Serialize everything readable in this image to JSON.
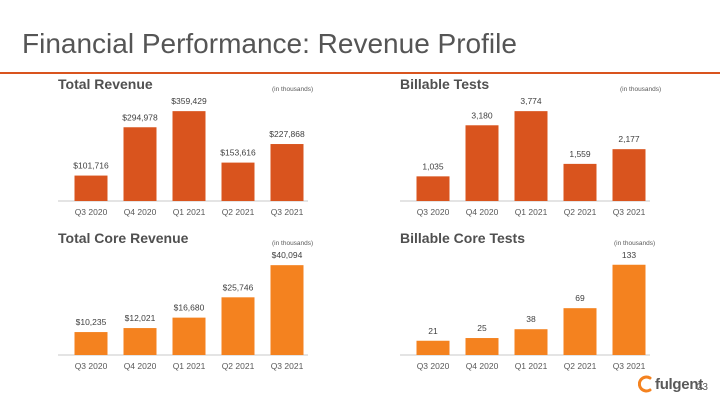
{
  "slide": {
    "title": "Financial Performance: Revenue Profile",
    "page_number": "23",
    "logo_text": "fulgent",
    "accent_color": "#d9541e",
    "logo_color": "#f4821f"
  },
  "chart_data": [
    {
      "id": "total-revenue",
      "type": "bar",
      "title": "Total Revenue",
      "units_note": "(in thousands)",
      "categories": [
        "Q3 2020",
        "Q4 2020",
        "Q1 2021",
        "Q2 2021",
        "Q3 2021"
      ],
      "values": [
        101716,
        294978,
        359429,
        153616,
        227868
      ],
      "value_labels": [
        "$101,716",
        "$294,978",
        "$359,429",
        "$153,616",
        "$227,868"
      ],
      "color": "#d9541e",
      "ylim": [
        0,
        380000
      ]
    },
    {
      "id": "billable-tests",
      "type": "bar",
      "title": "Billable Tests",
      "units_note": "(in thousands)",
      "categories": [
        "Q3 2020",
        "Q4 2020",
        "Q1 2021",
        "Q2 2021",
        "Q3 2021"
      ],
      "values": [
        1035,
        3180,
        3774,
        1559,
        2177
      ],
      "value_labels": [
        "1,035",
        "3,180",
        "3,774",
        "1,559",
        "2,177"
      ],
      "color": "#d9541e",
      "ylim": [
        0,
        3990
      ]
    },
    {
      "id": "total-core-revenue",
      "type": "bar",
      "title": "Total Core Revenue",
      "units_note": "(in thousands)",
      "categories": [
        "Q3 2020",
        "Q4 2020",
        "Q1 2021",
        "Q2 2021",
        "Q3 2021"
      ],
      "values": [
        10235,
        12021,
        16680,
        25746,
        40094
      ],
      "value_labels": [
        "$10,235",
        "$12,021",
        "$16,680",
        "$25,746",
        "$40,094"
      ],
      "color": "#f4821f",
      "ylim": [
        0,
        42400
      ]
    },
    {
      "id": "billable-core-tests",
      "type": "bar",
      "title": "Billable Core Tests",
      "units_note": "(in thousands)",
      "categories": [
        "Q3 2020",
        "Q4 2020",
        "Q1 2021",
        "Q2 2021",
        "Q3 2021"
      ],
      "values": [
        21,
        25,
        38,
        69,
        133
      ],
      "value_labels": [
        "21",
        "25",
        "38",
        "69",
        "133"
      ],
      "color": "#f4821f",
      "ylim": [
        0,
        140
      ]
    }
  ]
}
